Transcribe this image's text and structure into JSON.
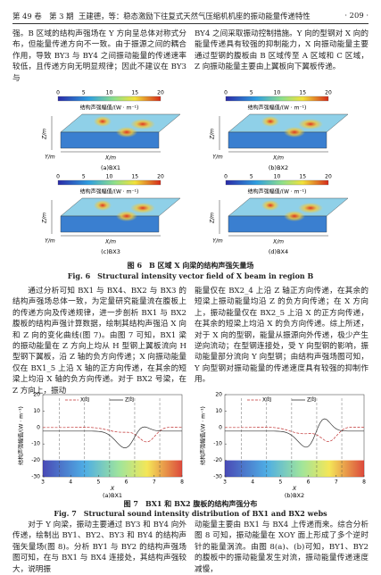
{
  "header": {
    "volume": "第 49 卷　第 3 期",
    "running_title": "王建德，等：稳态激励下往复式天然气压缩机机座的振动能量传递特性",
    "page": "· 209 ·"
  },
  "paragraphs_top": [
    "强。B 区域的结构声强场在 Y 方向呈总体对称式分布，但能量传递方向不一致。由于振源之间的耦合作用，导致 BY3 与 BY4 之间振动能量的传递速率较低，且传递方向无明显规律；因此不建议在 BY3 与",
    "BY4 之间采取振动控制措施。Y 向的型钢对 X 向的能量传递具有较强的抑制能力，X 向振动能量主要通过型钢的腹板由 B 区域传至 A 区域和 C 区域，Z 向振动能量主要由上翼板向下翼板传递。"
  ],
  "figure6": {
    "colorbar_ticks": [
      0,
      5,
      10,
      15,
      20
    ],
    "colorbar_label": "结构声强幅值/(W · m⁻¹)",
    "axis_labels": [
      "Z/m",
      "Y/m",
      "X/m"
    ],
    "panels": [
      "(a)BX1",
      "(b)BX2",
      "(c)BX3",
      "(d)BX4"
    ],
    "caption_cn": "图 6　B 区域 X 向梁的结构声强矢量场",
    "caption_en": "Fig. 6　Structural intensity vector field of X beam in region B"
  },
  "paragraphs_middle": [
    "通过分析可知 BX1 与 BX4、BX2 与 BX3 的结构声强场总体一致，为定量研究能量流在腹板上的传递方向及传递规律，进一步剖析 BX1 与 BX2 腹板的结构声强计算数据，绘制其结构声强沿 X 向和 Z 向的变化曲线(图 7)。由图 7 可知，BX1 梁的振动能量在 Z 方向上均从 H 型钢上翼板流向 H 型钢下翼板，沿 Z 轴的负方向传递；X 向振动能量仅在 BX1_5 上沿 X 轴的正方向传递，在其余的短梁上均沿 X 轴的负方向传递。对于 BX2 号梁，在 Z 方向上，振动",
    "能量仅在 BX2_4 上沿 Z 轴正方向传递，在其余的短梁上振动能量均沿 Z 的负方向传递；在 X 方向上，振动能量仅在 BX2_5 上沿 X 的正方向传递，在其余的短梁上均沿 X 的负方向传递。综上所述，对于 X 向的型钢，能量从振源向外传递，极少产生逆向流动；在型钢连接处，受 Y 向型钢的影响，振动能量部分流向 Y 向型钢；由结构声强场图可知，Y 向型钢对振动能量的传递速度具有较强的抑制作用。"
  ],
  "figure7": {
    "y_label": "结构声强幅值/(W · m⁻¹)",
    "x_label": "X",
    "legend": [
      "X向",
      "Z向"
    ],
    "yticks": [
      20,
      10,
      0,
      -10,
      -20,
      -30
    ],
    "xticks": [
      3,
      4,
      5,
      6,
      7,
      8
    ],
    "panels": [
      "(a)BX1",
      "(b)BX2"
    ],
    "caption_cn": "图 7　BX1 和 BX2 腹板的结构声强分布",
    "caption_en": "Fig. 7　Structural sound intensity distribution of BX1 and BX2 webs"
  },
  "paragraphs_bottom": [
    "对于 Y 向梁，振动主要通过 BY3 和 BY4 向外传递，绘制出 BY1、BY2、BY3 和 BY4 的结构声强矢量场(图 8)。分析 BY1 与 BY2 的结构声强场图可知，在与 BX1 与 BX4 连接处，其结构声强较大，说明振",
    "动能量主要由 BX1 与 BX4 上传递而来。综合分析图 8 可知，振动能量在 XOY 面上形成了多个逆时针的能量涡流。由图 8(a)、(b)可知，BY1、BY2 的腹板中的振动能量发生对流，振动能量传递速度减慢，"
  ]
}
